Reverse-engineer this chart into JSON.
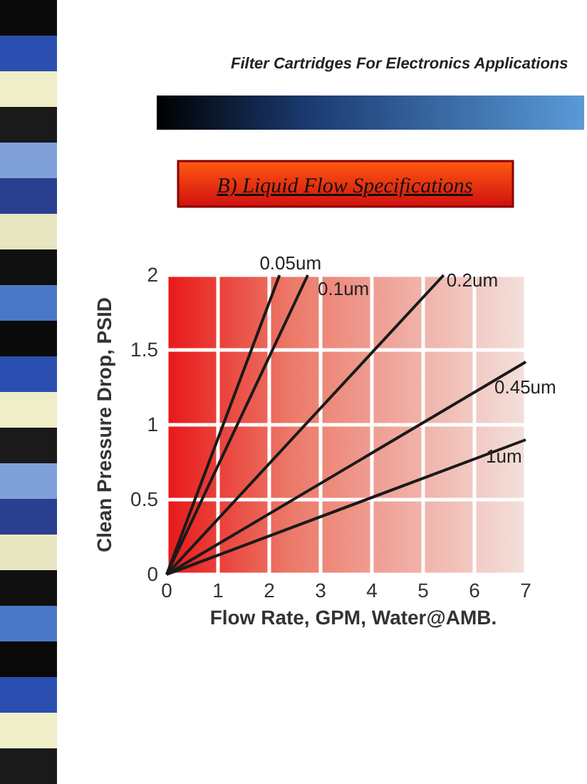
{
  "chart_data": {
    "type": "line",
    "title": "B) Liquid Flow Specifications",
    "subtitle": "Filter Cartridges For Electronics Applications",
    "xlabel": "Flow Rate, GPM, Water@AMB.",
    "ylabel": "Clean Pressure Drop, PSID",
    "xlim": [
      0,
      7
    ],
    "ylim": [
      0,
      2
    ],
    "xticks": [
      0,
      1,
      2,
      3,
      4,
      5,
      6,
      7
    ],
    "yticks": [
      0,
      0.5,
      1,
      1.5,
      2
    ],
    "grid": true,
    "line_style": "solid",
    "series": [
      {
        "name": "0.05um",
        "color": "#1a1a1a",
        "x": [
          0,
          2.2
        ],
        "values": [
          0,
          2
        ]
      },
      {
        "name": "0.1um",
        "color": "#1a1a1a",
        "x": [
          0,
          2.75
        ],
        "values": [
          0,
          2
        ]
      },
      {
        "name": "0.2um",
        "color": "#1a1a1a",
        "x": [
          0,
          5.4
        ],
        "values": [
          0,
          2
        ]
      },
      {
        "name": "0.45um",
        "color": "#1a1a1a",
        "x": [
          0,
          7
        ],
        "values": [
          0,
          1.42
        ]
      },
      {
        "name": "1um",
        "color": "#1a1a1a",
        "x": [
          0,
          7
        ],
        "values": [
          0,
          0.9
        ]
      }
    ]
  }
}
